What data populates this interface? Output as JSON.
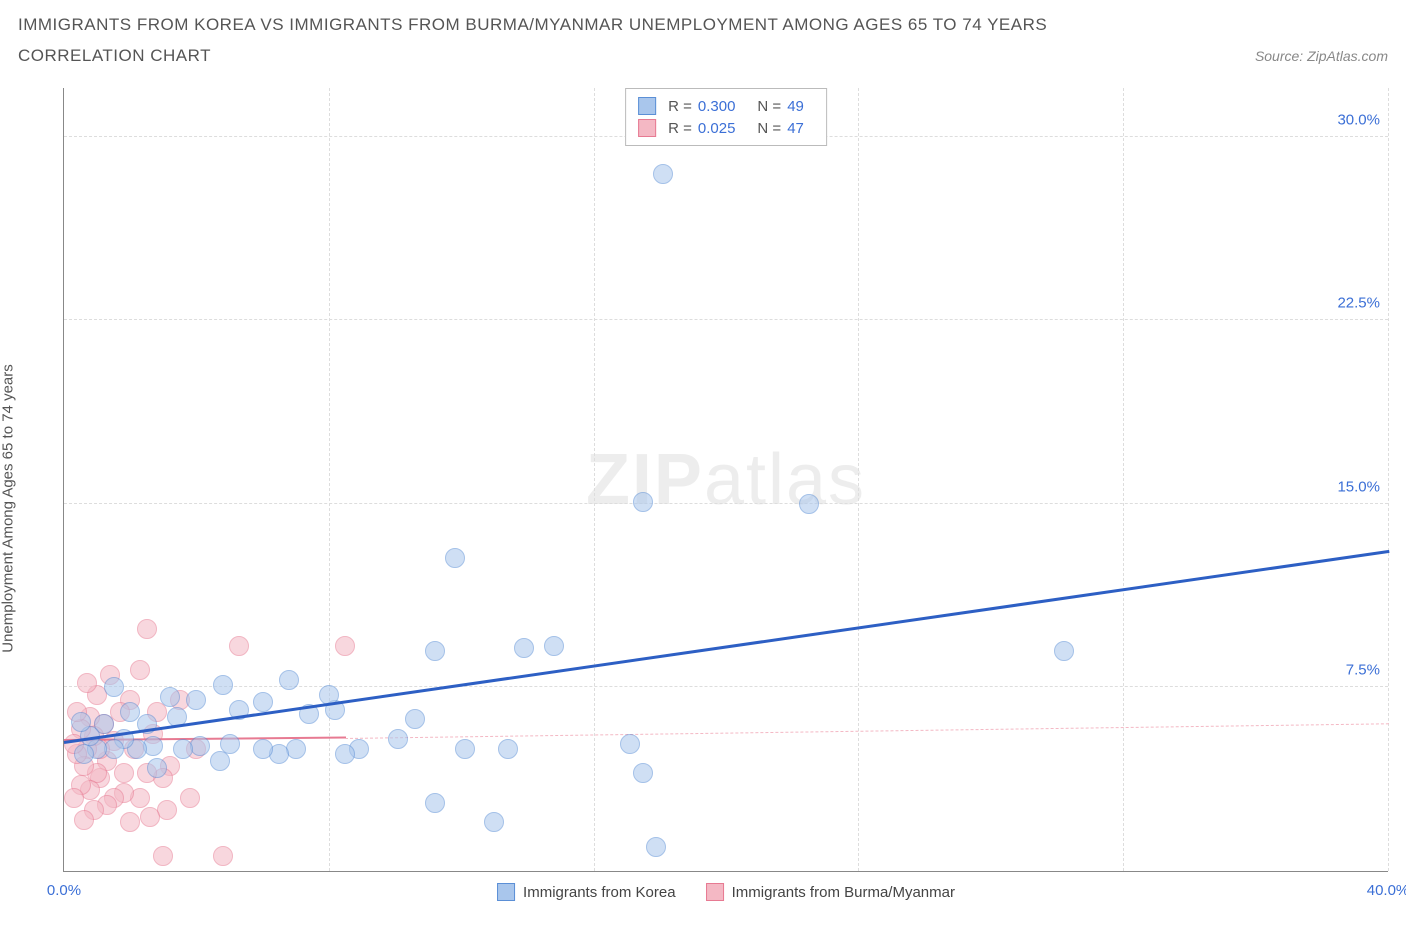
{
  "title": "IMMIGRANTS FROM KOREA VS IMMIGRANTS FROM BURMA/MYANMAR UNEMPLOYMENT AMONG AGES 65 TO 74 YEARS",
  "subtitle": "CORRELATION CHART",
  "source": "Source: ZipAtlas.com",
  "ylabel": "Unemployment Among Ages 65 to 74 years",
  "watermark_a": "ZIP",
  "watermark_b": "atlas",
  "chart": {
    "type": "scatter",
    "xlim": [
      0,
      40
    ],
    "ylim": [
      0,
      32
    ],
    "xticks": [
      {
        "v": 0,
        "l": "0.0%"
      },
      {
        "v": 40,
        "l": "40.0%"
      }
    ],
    "yticks": [
      {
        "v": 7.5,
        "l": "7.5%"
      },
      {
        "v": 15,
        "l": "15.0%"
      },
      {
        "v": 22.5,
        "l": "22.5%"
      },
      {
        "v": 30,
        "l": "30.0%"
      }
    ],
    "xgrid": [
      8,
      16,
      24,
      32,
      40
    ],
    "background_color": "#ffffff",
    "grid_color": "#dddddd",
    "axis_color": "#888888",
    "point_radius": 10,
    "series": [
      {
        "name": "Immigrants from Korea",
        "color_fill": "#a9c6ec",
        "color_stroke": "#5b8fd6",
        "fill_opacity": 0.55,
        "R": "0.300",
        "N": "49",
        "trend": {
          "x1": 0,
          "y1": 5.2,
          "x2": 40,
          "y2": 13.0,
          "width": 3,
          "dash": false,
          "color": "#2d5fc4"
        },
        "points": [
          [
            18.1,
            28.5
          ],
          [
            30.2,
            9.0
          ],
          [
            17.5,
            15.1
          ],
          [
            22.5,
            15.0
          ],
          [
            17.1,
            5.2
          ],
          [
            17.5,
            4.0
          ],
          [
            17.9,
            1.0
          ],
          [
            13.4,
            5.0
          ],
          [
            13.9,
            9.1
          ],
          [
            13.0,
            2.0
          ],
          [
            11.2,
            2.8
          ],
          [
            11.8,
            12.8
          ],
          [
            11.2,
            9.0
          ],
          [
            14.8,
            9.2
          ],
          [
            10.6,
            6.2
          ],
          [
            10.1,
            5.4
          ],
          [
            12.1,
            5.0
          ],
          [
            8.2,
            6.6
          ],
          [
            8.9,
            5.0
          ],
          [
            8.5,
            4.8
          ],
          [
            8.0,
            7.2
          ],
          [
            7.4,
            6.4
          ],
          [
            7.0,
            5.0
          ],
          [
            6.8,
            7.8
          ],
          [
            6.5,
            4.8
          ],
          [
            6.0,
            6.9
          ],
          [
            6.0,
            5.0
          ],
          [
            5.3,
            6.6
          ],
          [
            5.0,
            5.2
          ],
          [
            4.8,
            7.6
          ],
          [
            4.7,
            4.5
          ],
          [
            4.1,
            5.1
          ],
          [
            4.0,
            7.0
          ],
          [
            3.6,
            5.0
          ],
          [
            3.4,
            6.3
          ],
          [
            3.2,
            7.1
          ],
          [
            2.7,
            5.1
          ],
          [
            2.8,
            4.2
          ],
          [
            2.5,
            6.0
          ],
          [
            2.2,
            5.0
          ],
          [
            2.0,
            6.5
          ],
          [
            1.8,
            5.4
          ],
          [
            1.5,
            5.0
          ],
          [
            1.5,
            7.5
          ],
          [
            1.2,
            6.0
          ],
          [
            1.0,
            5.0
          ],
          [
            0.8,
            5.5
          ],
          [
            0.6,
            4.8
          ],
          [
            0.5,
            6.1
          ]
        ]
      },
      {
        "name": "Immigrants from Burma/Myanmar",
        "color_fill": "#f4b8c4",
        "color_stroke": "#e77a92",
        "fill_opacity": 0.55,
        "R": "0.025",
        "N": "47",
        "trend_solid": {
          "x1": 0,
          "y1": 5.3,
          "x2": 8.5,
          "y2": 5.4,
          "width": 2.5,
          "dash": false,
          "color": "#e77a92"
        },
        "trend": {
          "x1": 8.5,
          "y1": 5.4,
          "x2": 40,
          "y2": 6.0,
          "width": 1.5,
          "dash": true,
          "color": "#f4b8c4"
        },
        "points": [
          [
            8.5,
            9.2
          ],
          [
            5.3,
            9.2
          ],
          [
            4.8,
            0.6
          ],
          [
            3.0,
            0.6
          ],
          [
            2.5,
            9.9
          ],
          [
            4.0,
            5.0
          ],
          [
            3.8,
            3.0
          ],
          [
            3.5,
            7.0
          ],
          [
            3.2,
            4.3
          ],
          [
            3.1,
            2.5
          ],
          [
            3.0,
            3.8
          ],
          [
            2.8,
            6.5
          ],
          [
            2.7,
            5.6
          ],
          [
            2.6,
            2.2
          ],
          [
            2.5,
            4.0
          ],
          [
            2.3,
            3.0
          ],
          [
            2.3,
            8.2
          ],
          [
            2.1,
            5.0
          ],
          [
            2.0,
            2.0
          ],
          [
            2.0,
            7.0
          ],
          [
            1.8,
            4.0
          ],
          [
            1.8,
            3.2
          ],
          [
            1.7,
            6.5
          ],
          [
            1.5,
            5.3
          ],
          [
            1.5,
            3.0
          ],
          [
            1.4,
            8.0
          ],
          [
            1.3,
            4.5
          ],
          [
            1.3,
            2.7
          ],
          [
            1.2,
            6.0
          ],
          [
            1.1,
            5.0
          ],
          [
            1.1,
            3.8
          ],
          [
            1.0,
            7.2
          ],
          [
            1.0,
            4.0
          ],
          [
            0.9,
            2.5
          ],
          [
            0.9,
            5.5
          ],
          [
            0.8,
            6.3
          ],
          [
            0.8,
            3.3
          ],
          [
            0.7,
            5.0
          ],
          [
            0.7,
            7.7
          ],
          [
            0.6,
            4.3
          ],
          [
            0.6,
            2.1
          ],
          [
            0.5,
            5.8
          ],
          [
            0.5,
            3.5
          ],
          [
            0.4,
            6.5
          ],
          [
            0.4,
            4.8
          ],
          [
            0.3,
            5.2
          ],
          [
            0.3,
            3.0
          ]
        ]
      }
    ]
  },
  "legend_top": {
    "rows": [
      {
        "swatch_fill": "#a9c6ec",
        "swatch_stroke": "#5b8fd6",
        "R": "0.300",
        "N": "49"
      },
      {
        "swatch_fill": "#f4b8c4",
        "swatch_stroke": "#e77a92",
        "R": "0.025",
        "N": "47"
      }
    ],
    "r_label": "R =",
    "n_label": "N ="
  },
  "legend_bottom": [
    {
      "swatch_fill": "#a9c6ec",
      "swatch_stroke": "#5b8fd6",
      "label": "Immigrants from Korea"
    },
    {
      "swatch_fill": "#f4b8c4",
      "swatch_stroke": "#e77a92",
      "label": "Immigrants from Burma/Myanmar"
    }
  ]
}
